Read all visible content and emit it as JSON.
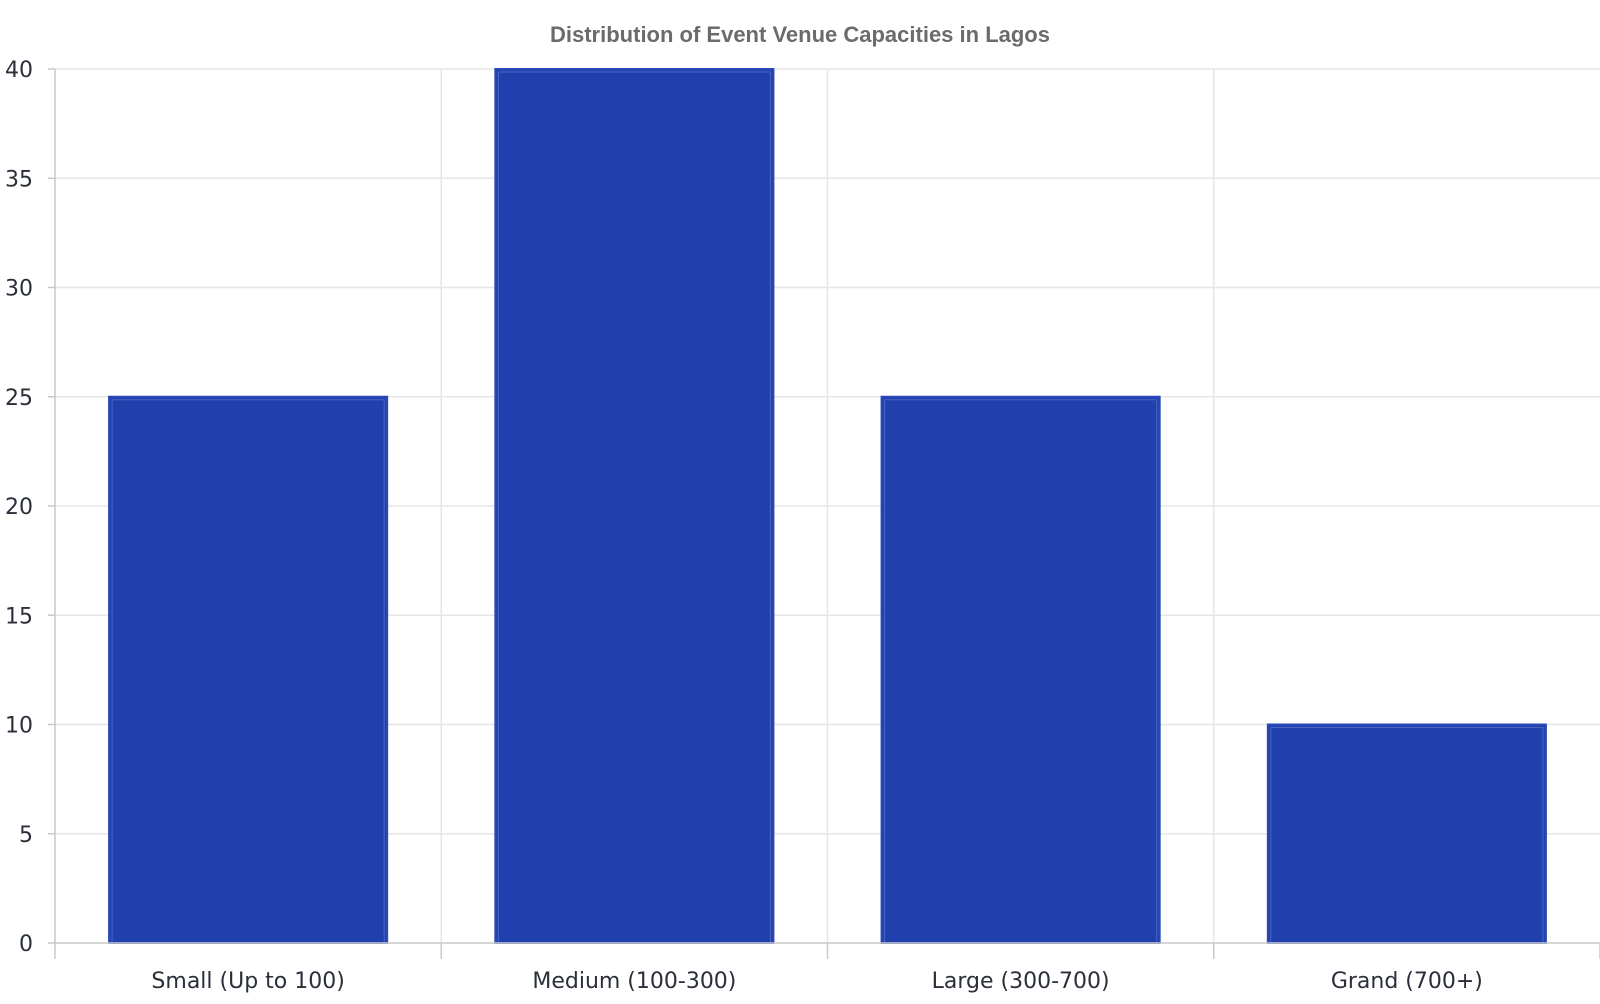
{
  "chart_data": {
    "type": "bar",
    "title": "Distribution of Event Venue Capacities in Lagos",
    "xlabel": "",
    "ylabel": "",
    "categories": [
      "Small (Up to 100)",
      "Medium (100-300)",
      "Large (300-700)",
      "Grand (700+)"
    ],
    "values": [
      25,
      40,
      25,
      10
    ],
    "ylim": [
      0,
      40
    ],
    "yticks": [
      0,
      5,
      10,
      15,
      20,
      25,
      30,
      35,
      40
    ],
    "grid": true,
    "legend": "none",
    "bar_color": "#1f40ad",
    "bar_edge_color": "#2a48b8"
  }
}
